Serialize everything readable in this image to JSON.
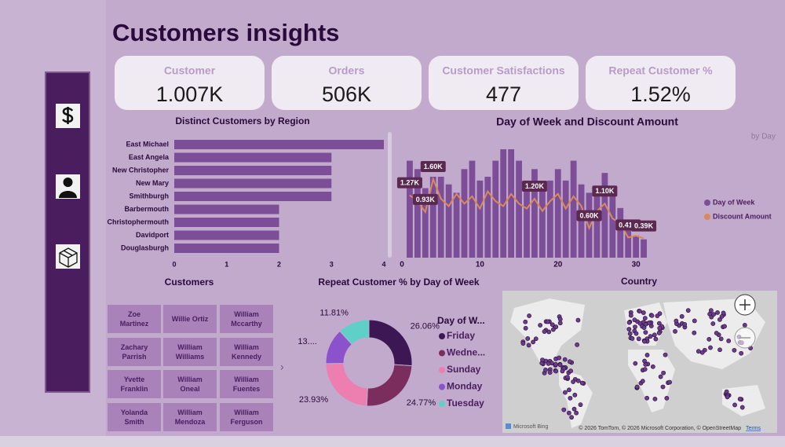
{
  "title": "Customers insights",
  "kpis": [
    {
      "label": "Customer",
      "value": "1.007K"
    },
    {
      "label": "Orders",
      "value": "506K"
    },
    {
      "label": "Customer Satisfactions",
      "value": "477"
    },
    {
      "label": "Repeat Customer %",
      "value": "1.52%"
    }
  ],
  "chart_data": [
    {
      "type": "hbar",
      "title": "Distinct Customers by Region",
      "categories": [
        "East Michael",
        "East Angela",
        "New Christopher",
        "New Mary",
        "Smithburgh",
        "Barbermouth",
        "Christophermouth",
        "Davidport",
        "Douglasburgh"
      ],
      "values": [
        4,
        3,
        3,
        3,
        3,
        2,
        2,
        2,
        2
      ],
      "color": "#7d4e98",
      "xlim": [
        0,
        4
      ],
      "xticks": [
        0,
        1,
        2,
        3,
        4
      ]
    },
    {
      "type": "combo",
      "title": "Day of Week and Discount Amount",
      "subtitle": "by Day",
      "x": [
        1,
        2,
        3,
        4,
        5,
        6,
        7,
        8,
        9,
        10,
        11,
        12,
        13,
        14,
        15,
        16,
        17,
        18,
        19,
        20,
        21,
        22,
        23,
        24,
        25,
        26,
        27,
        28,
        29,
        30,
        31
      ],
      "xlim": [
        0,
        32
      ],
      "xticks": [
        0,
        10,
        20,
        30
      ],
      "series": [
        {
          "name": "Day of Week",
          "kind": "bar",
          "color": "#7d4e98",
          "values": [
            1270,
            1160,
            910,
            1060,
            1060,
            960,
            850,
            1160,
            1270,
            1010,
            1060,
            1270,
            1420,
            1420,
            1270,
            1010,
            1160,
            960,
            1010,
            1160,
            1010,
            1270,
            960,
            850,
            910,
            1110,
            910,
            650,
            440,
            290,
            240
          ]
        },
        {
          "name": "Discount Amount",
          "kind": "line",
          "axis": "y2",
          "color": "#d98a5a",
          "values": [
            1270,
            1150,
            930,
            1600,
            1200,
            1050,
            1300,
            1100,
            1250,
            1000,
            1350,
            1150,
            1050,
            1300,
            1100,
            1000,
            1200,
            950,
            1150,
            1300,
            1000,
            1250,
            1050,
            600,
            950,
            1100,
            800,
            700,
            410,
            450,
            390
          ],
          "value_labels": [
            "1.27K",
            null,
            "0.93K",
            "1.60K",
            null,
            null,
            null,
            null,
            null,
            null,
            null,
            null,
            null,
            null,
            null,
            null,
            "1.20K",
            null,
            null,
            null,
            null,
            null,
            null,
            "0.60K",
            null,
            "1.10K",
            null,
            null,
            "0.41K",
            null,
            "0.39K"
          ]
        }
      ]
    },
    {
      "type": "donut",
      "title": "Repeat Customer % by Day of Week",
      "legend_title": "Day of W...",
      "categories": [
        "Friday",
        "Wedne...",
        "Sunday",
        "Monday",
        "Tuesday"
      ],
      "values": [
        26.06,
        24.77,
        23.93,
        13.43,
        11.81
      ],
      "value_labels": [
        "26.06%",
        "24.77%",
        "23.93%",
        "13....",
        "11.81%"
      ],
      "colors": [
        "#3d1654",
        "#7b2d5e",
        "#ec7fb0",
        "#8c52cc",
        "#5fd0c8"
      ]
    }
  ],
  "customers": {
    "title": "Customers",
    "names": [
      "Zoe Martinez",
      "Willie Ortiz",
      "William Mccarthy",
      "Zachary Parrish",
      "William Williams",
      "William Kennedy",
      "Yvette Franklin",
      "William Oneal",
      "William Fuentes",
      "Yolanda Smith",
      "William Mendoza",
      "William Ferguson"
    ]
  },
  "map": {
    "title": "Country",
    "brand": "Microsoft Bing",
    "attribution": "© 2026 TomTom, © 2026 Microsoft Corporation, © OpenStreetMap",
    "terms": "Terms"
  }
}
